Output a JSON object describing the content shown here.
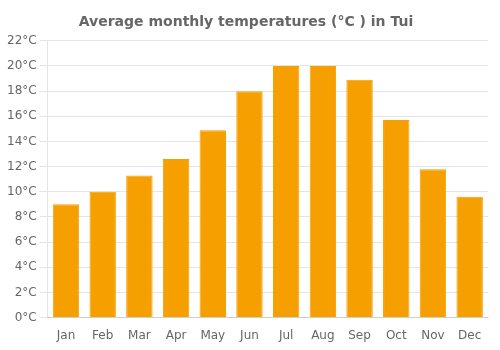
{
  "chart_data": {
    "type": "bar",
    "title": "Average monthly temperatures (°C ) in Tui",
    "categories": [
      "Jan",
      "Feb",
      "Mar",
      "Apr",
      "May",
      "Jun",
      "Jul",
      "Aug",
      "Sep",
      "Oct",
      "Nov",
      "Dec"
    ],
    "values": [
      9.0,
      10.0,
      11.3,
      12.6,
      14.9,
      18.0,
      20.0,
      20.0,
      18.9,
      15.7,
      11.8,
      9.6
    ],
    "color": "#F5A000",
    "ylim": [
      0,
      22
    ],
    "yticks": [
      {
        "value": 0,
        "label": "0°C"
      },
      {
        "value": 2,
        "label": "2°C"
      },
      {
        "value": 4,
        "label": "4°C"
      },
      {
        "value": 6,
        "label": "6°C"
      },
      {
        "value": 8,
        "label": "8°C"
      },
      {
        "value": 10,
        "label": "10°C"
      },
      {
        "value": 12,
        "label": "12°C"
      },
      {
        "value": 14,
        "label": "14°C"
      },
      {
        "value": 16,
        "label": "16°C"
      },
      {
        "value": 18,
        "label": "18°C"
      },
      {
        "value": 20,
        "label": "20°C"
      },
      {
        "value": 22,
        "label": "22°C"
      }
    ],
    "grid": true
  }
}
